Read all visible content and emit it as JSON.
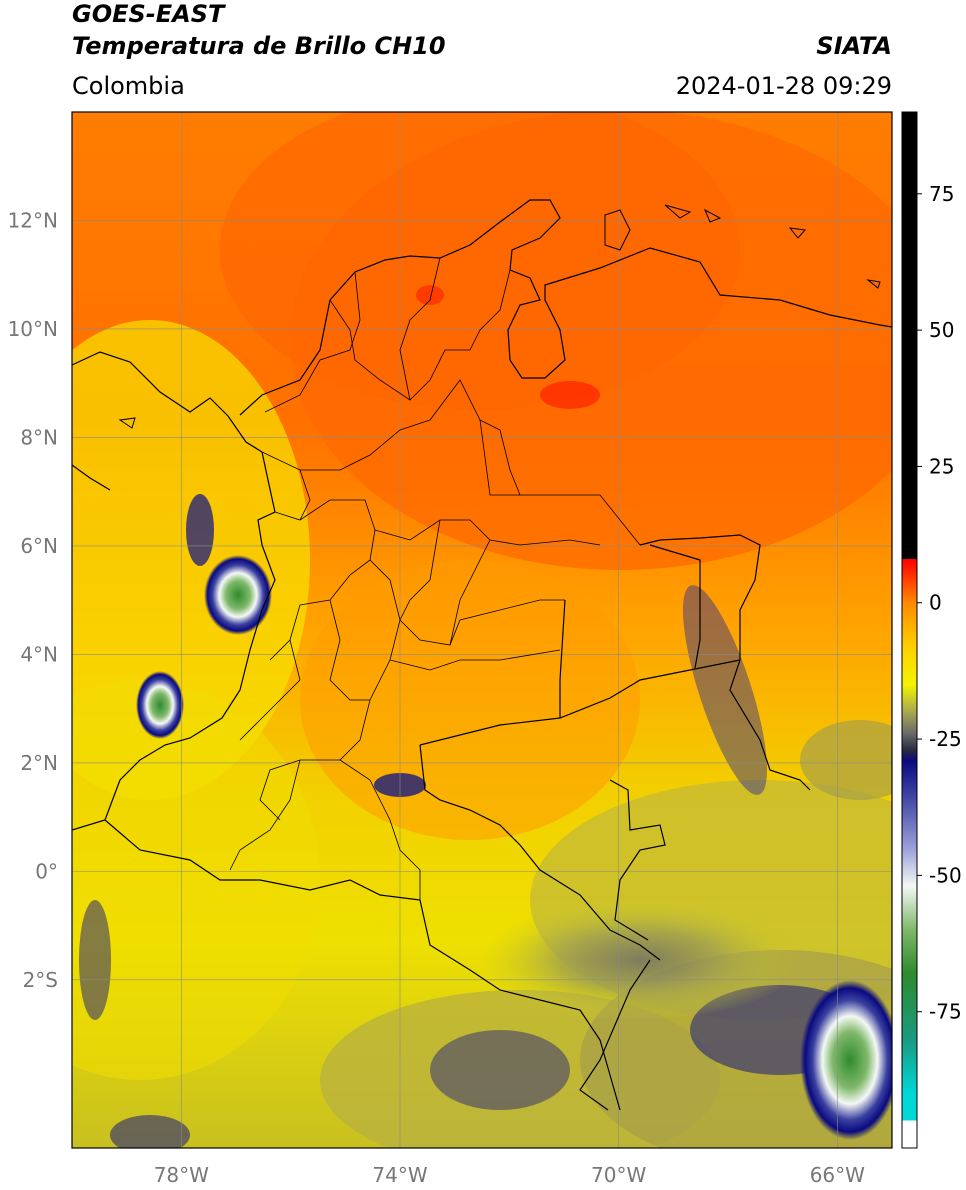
{
  "header": {
    "satellite": "GOES-EAST",
    "product": "Temperatura de Brillo CH10",
    "region": "Colombia",
    "agency": "SIATA",
    "datetime": "2024-01-28 09:29"
  },
  "map": {
    "lat_range": [
      -5.1,
      14.0
    ],
    "lon_range": [
      -80.0,
      -65.0
    ],
    "lat_ticks": [
      {
        "value": 12,
        "label": "12°N"
      },
      {
        "value": 10,
        "label": "10°N"
      },
      {
        "value": 8,
        "label": "8°N"
      },
      {
        "value": 6,
        "label": "6°N"
      },
      {
        "value": 4,
        "label": "4°N"
      },
      {
        "value": 2,
        "label": "2°N"
      },
      {
        "value": 0,
        "label": "0°"
      },
      {
        "value": -2,
        "label": "2°S"
      }
    ],
    "lon_ticks": [
      {
        "value": -78,
        "label": "78°W"
      },
      {
        "value": -74,
        "label": "74°W"
      },
      {
        "value": -70,
        "label": "70°W"
      },
      {
        "value": -66,
        "label": "66°W"
      }
    ],
    "grid": true
  },
  "colorbar": {
    "range": [
      -100,
      90
    ],
    "ticks": [
      {
        "value": 75,
        "label": "75"
      },
      {
        "value": 50,
        "label": "50"
      },
      {
        "value": 25,
        "label": "25"
      },
      {
        "value": 0,
        "label": "0"
      },
      {
        "value": -25,
        "label": "-25"
      },
      {
        "value": -50,
        "label": "-50"
      },
      {
        "value": -75,
        "label": "-75"
      }
    ],
    "stops": [
      {
        "value": -100,
        "color": "#ffffff"
      },
      {
        "value": -95,
        "color": "#ffffff"
      },
      {
        "value": -95,
        "color": "#00d8d8"
      },
      {
        "value": -90,
        "color": "#00d8d8"
      },
      {
        "value": -80,
        "color": "#1a9a80"
      },
      {
        "value": -68,
        "color": "#2e8b2e"
      },
      {
        "value": -60,
        "color": "#7fb86a"
      },
      {
        "value": -52,
        "color": "#f4f8f4"
      },
      {
        "value": -45,
        "color": "#9aa0d8"
      },
      {
        "value": -35,
        "color": "#3a40a0"
      },
      {
        "value": -29,
        "color": "#0a0a80"
      },
      {
        "value": -27,
        "color": "#2a2a40"
      },
      {
        "value": -24,
        "color": "#6a6a6a"
      },
      {
        "value": -20,
        "color": "#a8a850"
      },
      {
        "value": -15,
        "color": "#f4f400"
      },
      {
        "value": -8,
        "color": "#ffd000"
      },
      {
        "value": 0,
        "color": "#ff8a00"
      },
      {
        "value": 6,
        "color": "#ff2000"
      },
      {
        "value": 8,
        "color": "#ff0000"
      },
      {
        "value": 8,
        "color": "#000000"
      },
      {
        "value": 90,
        "color": "#000000"
      }
    ]
  }
}
